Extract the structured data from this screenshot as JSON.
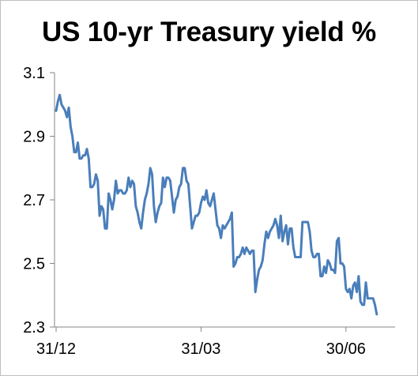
{
  "chart_data": {
    "type": "line",
    "title": "US 10-yr Treasury yield %",
    "xlabel": "",
    "ylabel": "",
    "ylim": [
      2.3,
      3.1
    ],
    "yticks": [
      2.3,
      2.5,
      2.7,
      2.9,
      3.1
    ],
    "ytick_labels": [
      "2.3",
      "2.5",
      "2.7",
      "2.9",
      "3.1"
    ],
    "xticks": [
      {
        "index": 0,
        "label": "31/12"
      },
      {
        "index": 80,
        "label": "31/03"
      },
      {
        "index": 160,
        "label": "30/06"
      }
    ],
    "grid": false,
    "legend": "none",
    "series_color": "#4a7ebb",
    "axis_color": "#868686",
    "series": [
      {
        "values": [
          2.98,
          3.01,
          3.03,
          3.0,
          2.99,
          2.98,
          2.96,
          2.99,
          2.93,
          2.9,
          2.85,
          2.85,
          2.88,
          2.83,
          2.83,
          2.84,
          2.84,
          2.86,
          2.83,
          2.74,
          2.74,
          2.75,
          2.78,
          2.76,
          2.65,
          2.68,
          2.67,
          2.61,
          2.61,
          2.72,
          2.7,
          2.67,
          2.7,
          2.76,
          2.72,
          2.73,
          2.73,
          2.72,
          2.72,
          2.73,
          2.77,
          2.74,
          2.76,
          2.75,
          2.68,
          2.66,
          2.63,
          2.61,
          2.66,
          2.7,
          2.72,
          2.75,
          2.8,
          2.78,
          2.68,
          2.63,
          2.66,
          2.68,
          2.69,
          2.77,
          2.74,
          2.77,
          2.77,
          2.76,
          2.71,
          2.66,
          2.7,
          2.71,
          2.74,
          2.75,
          2.8,
          2.8,
          2.76,
          2.75,
          2.68,
          2.61,
          2.63,
          2.65,
          2.65,
          2.66,
          2.69,
          2.71,
          2.7,
          2.73,
          2.69,
          2.68,
          2.7,
          2.72,
          2.67,
          2.62,
          2.61,
          2.58,
          2.62,
          2.61,
          2.62,
          2.63,
          2.64,
          2.66,
          2.49,
          2.5,
          2.52,
          2.52,
          2.53,
          2.55,
          2.53,
          2.55,
          2.54,
          2.53,
          2.54,
          2.54,
          2.41,
          2.45,
          2.48,
          2.49,
          2.51,
          2.56,
          2.6,
          2.58,
          2.6,
          2.61,
          2.62,
          2.64,
          2.62,
          2.58,
          2.65,
          2.57,
          2.6,
          2.62,
          2.56,
          2.61,
          2.61,
          2.55,
          2.52,
          2.52,
          2.52,
          2.52,
          2.63,
          2.63,
          2.63,
          2.63,
          2.6,
          2.54,
          2.52,
          2.52,
          2.53,
          2.53,
          2.46,
          2.46,
          2.49,
          2.47,
          2.51,
          2.5,
          2.48,
          2.48,
          2.47,
          2.57,
          2.58,
          2.5,
          2.5,
          2.49,
          2.42,
          2.41,
          2.42,
          2.39,
          2.43,
          2.44,
          2.41,
          2.46,
          2.38,
          2.37,
          2.37,
          2.44,
          2.39,
          2.39,
          2.39,
          2.39,
          2.37,
          2.34
        ]
      }
    ]
  }
}
